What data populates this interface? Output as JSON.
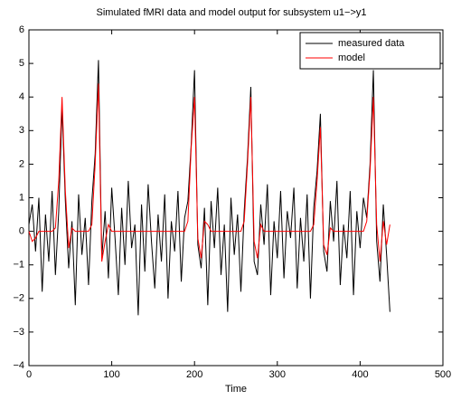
{
  "chart_data": {
    "type": "line",
    "title": "Simulated fMRI data and model output for subsystem u1−>y1",
    "x_label": "Time",
    "x": [
      0,
      4,
      8,
      12,
      16,
      20,
      24,
      28,
      32,
      36,
      40,
      44,
      48,
      52,
      56,
      60,
      64,
      68,
      72,
      76,
      80,
      84,
      88,
      92,
      96,
      100,
      104,
      108,
      112,
      116,
      120,
      124,
      128,
      132,
      136,
      140,
      144,
      148,
      152,
      156,
      160,
      164,
      168,
      172,
      176,
      180,
      184,
      188,
      192,
      196,
      200,
      204,
      208,
      212,
      216,
      220,
      224,
      228,
      232,
      236,
      240,
      244,
      248,
      252,
      256,
      260,
      264,
      268,
      272,
      276,
      280,
      284,
      288,
      292,
      296,
      300,
      304,
      308,
      312,
      316,
      320,
      324,
      328,
      332,
      336,
      340,
      344,
      348,
      352,
      356,
      360,
      364,
      368,
      372,
      376,
      380,
      384,
      388,
      392,
      396,
      400,
      404,
      408,
      412,
      416,
      420,
      424,
      428,
      432,
      436
    ],
    "series": [
      {
        "name": "measured data",
        "color": "#000000",
        "values": [
          0.2,
          0.8,
          -0.6,
          1.0,
          -1.8,
          0.5,
          -0.9,
          1.2,
          -1.3,
          0.6,
          3.7,
          0.9,
          -1.1,
          0.3,
          -2.2,
          1.1,
          -0.7,
          0.4,
          -1.6,
          0.9,
          2.3,
          5.1,
          -0.8,
          0.6,
          -1.4,
          1.3,
          -0.2,
          -1.9,
          0.7,
          -1.0,
          1.5,
          -0.5,
          0.2,
          -2.5,
          0.8,
          -1.2,
          1.4,
          -0.3,
          -1.7,
          0.5,
          -0.9,
          1.1,
          -2.0,
          0.3,
          -0.6,
          1.2,
          -1.5,
          0.4,
          0.9,
          2.6,
          4.8,
          -0.4,
          -1.1,
          0.7,
          -2.2,
          0.9,
          -0.5,
          1.3,
          -1.3,
          0.2,
          -2.4,
          1.0,
          -0.7,
          0.5,
          -1.8,
          0.6,
          2.2,
          4.3,
          -0.9,
          -1.3,
          0.8,
          -0.4,
          1.4,
          -1.9,
          0.3,
          -0.8,
          1.2,
          -1.4,
          0.6,
          -0.2,
          1.3,
          -1.7,
          0.4,
          -0.9,
          1.1,
          -2.0,
          0.7,
          1.8,
          3.5,
          -0.6,
          -1.2,
          0.9,
          -0.3,
          1.5,
          -1.6,
          0.2,
          -0.8,
          1.2,
          -1.9,
          0.6,
          -0.5,
          1.0,
          0.4,
          2.0,
          4.8,
          -0.3,
          -1.5,
          0.8,
          -0.7,
          -2.4
        ]
      },
      {
        "name": "model",
        "color": "#ff0000",
        "values": [
          0,
          -0.3,
          -0.2,
          0,
          0,
          0,
          0,
          0,
          0.1,
          1.5,
          4.0,
          1.2,
          -0.5,
          0.1,
          0,
          0,
          0,
          0,
          0,
          0.2,
          2.0,
          4.4,
          -0.9,
          -0.3,
          0.2,
          0,
          0,
          0,
          0,
          0,
          0,
          0,
          0,
          0,
          0,
          0,
          0,
          0,
          0,
          0,
          0,
          0,
          0,
          0,
          0,
          0,
          0,
          0,
          0.3,
          2.5,
          4.0,
          -0.2,
          -0.8,
          0.3,
          0.2,
          0,
          0,
          0,
          0,
          0,
          0,
          0,
          0,
          0,
          0,
          0.3,
          2.0,
          4.0,
          -0.3,
          -0.8,
          0.2,
          0,
          0,
          0,
          0,
          0,
          0,
          0,
          0,
          0,
          0,
          0,
          0,
          0,
          0,
          0,
          0.2,
          1.5,
          3.1,
          -0.4,
          -0.7,
          0.1,
          0,
          0,
          0,
          0,
          0,
          0,
          0,
          0,
          0,
          0,
          0.3,
          1.8,
          4.0,
          0.2,
          -0.9,
          0.3,
          -0.4,
          0.2
        ]
      }
    ],
    "xlim": [
      0,
      500
    ],
    "xticks": [
      0,
      100,
      200,
      300,
      400,
      500
    ],
    "ylim": [
      -4,
      6
    ],
    "yticks": [
      {
        "value": -4,
        "label": "−4"
      },
      {
        "value": -3,
        "label": "−3"
      },
      {
        "value": -2,
        "label": "−2"
      },
      {
        "value": -1,
        "label": "−1"
      },
      0,
      1,
      2,
      3,
      4,
      5,
      6
    ],
    "grid": false,
    "legend": "upper right"
  }
}
